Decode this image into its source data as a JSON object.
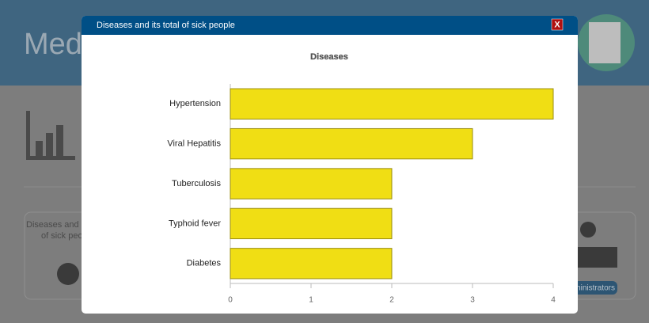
{
  "app": {
    "title": "Med",
    "card_lines": [
      "Diseases and",
      "of sick peo"
    ],
    "button": "ministrators"
  },
  "modal": {
    "title": "Diseases and its total of sick people",
    "close": "X"
  },
  "chart_data": {
    "type": "bar",
    "orientation": "horizontal",
    "title": "Diseases",
    "categories": [
      "Hypertension",
      "Viral Hepatitis",
      "Tuberculosis",
      "Typhoid fever",
      "Diabetes"
    ],
    "values": [
      4,
      3,
      2,
      2,
      2
    ],
    "color": "#f0de14",
    "xlim": [
      0,
      4
    ],
    "xticks": [
      0,
      1,
      2,
      3,
      4
    ],
    "grid": true
  }
}
